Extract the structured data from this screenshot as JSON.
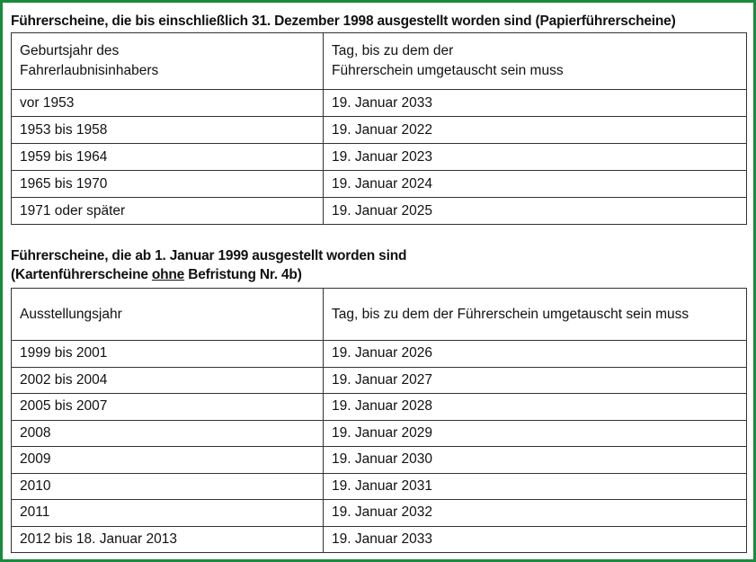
{
  "section1": {
    "title": "Führerscheine, die bis einschließlich 31. Dezember 1998 ausgestellt worden sind (Papierführerscheine)",
    "header": [
      "Geburtsjahr des\nFahrerlaubnisinhabers",
      "Tag, bis zu dem der\nFührerschein umgetauscht sein muss"
    ],
    "rows": [
      [
        "vor 1953",
        "19. Januar 2033"
      ],
      [
        "1953 bis 1958",
        "19. Januar 2022"
      ],
      [
        "1959 bis 1964",
        "19. Januar 2023"
      ],
      [
        "1965 bis 1970",
        "19. Januar 2024"
      ],
      [
        "1971 oder später",
        "19. Januar 2025"
      ]
    ]
  },
  "section2": {
    "title_line1": "Führerscheine, die ab 1. Januar 1999 ausgestellt worden sind",
    "title_line2_pre": "(Kartenführerscheine ",
    "title_line2_underlined": "ohne",
    "title_line2_post": " Befristung Nr. 4b)",
    "header": [
      "Ausstellungsjahr",
      "Tag, bis zu dem der Führerschein umgetauscht sein muss"
    ],
    "rows": [
      [
        "1999 bis 2001",
        "19. Januar 2026"
      ],
      [
        "2002 bis 2004",
        "19. Januar 2027"
      ],
      [
        "2005 bis 2007",
        "19. Januar 2028"
      ],
      [
        "2008",
        "19. Januar 2029"
      ],
      [
        "2009",
        "19. Januar 2030"
      ],
      [
        "2010",
        "19. Januar 2031"
      ],
      [
        "2011",
        "19. Januar 2032"
      ],
      [
        "2012 bis 18. Januar 2013",
        "19. Januar 2033"
      ]
    ]
  },
  "colors": {
    "frame": "#1a8a3c"
  }
}
